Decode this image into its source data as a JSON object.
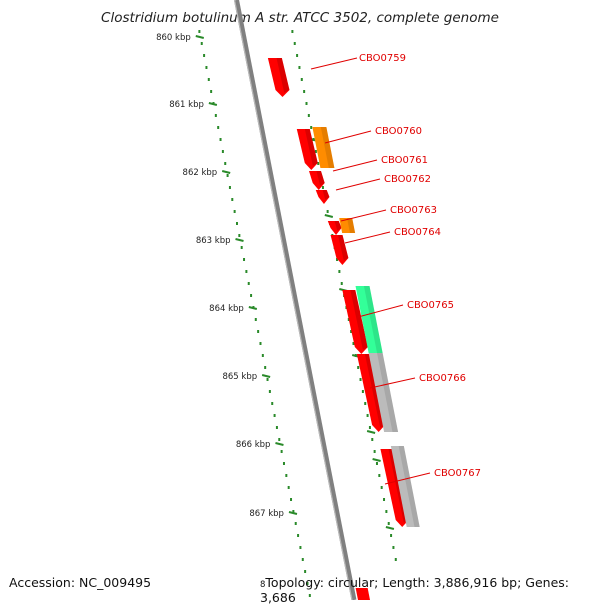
{
  "title": "Clostridium botulinum A str. ATCC 3502, complete genome",
  "footer": {
    "accession": "Accession: NC_009495",
    "topology": "Topology: circular; Length: 3,886,916 bp; Genes: 3,686",
    "partial_tick": "8"
  },
  "ruler": {
    "unit": "kbp",
    "ticks": [
      "860 kbp",
      "861 kbp",
      "862 kbp",
      "863 kbp",
      "864 kbp",
      "865 kbp",
      "866 kbp",
      "867 kbp"
    ]
  },
  "colors": {
    "backbone": "#808080",
    "ruler": "#2a8a2a",
    "label": "#e00000",
    "gene_red": "#ff0000",
    "gene_orange": "#ff8c00",
    "gene_teal": "#33ff99",
    "gene_grey": "#bbbbbb"
  },
  "genes": [
    {
      "label": "CBO0759",
      "color": "#ff0000"
    },
    {
      "label": "CBO0760",
      "color": "#ff0000"
    },
    {
      "label": "CBO0761",
      "color": "#ff0000"
    },
    {
      "label": "CBO0762",
      "color": "#ff0000"
    },
    {
      "label": "CBO0763",
      "color": "#ff0000"
    },
    {
      "label": "CBO0764",
      "color": "#ff0000"
    },
    {
      "label": "CBO0765",
      "color": "#ff0000"
    },
    {
      "label": "CBO0766",
      "color": "#ff0000"
    },
    {
      "label": "CBO0767",
      "color": "#ff0000"
    }
  ],
  "features": [
    {
      "color": "#ff8c00"
    },
    {
      "color": "#ff8c00"
    },
    {
      "color": "#33ff99"
    },
    {
      "color": "#bbbbbb"
    },
    {
      "color": "#bbbbbb"
    }
  ]
}
